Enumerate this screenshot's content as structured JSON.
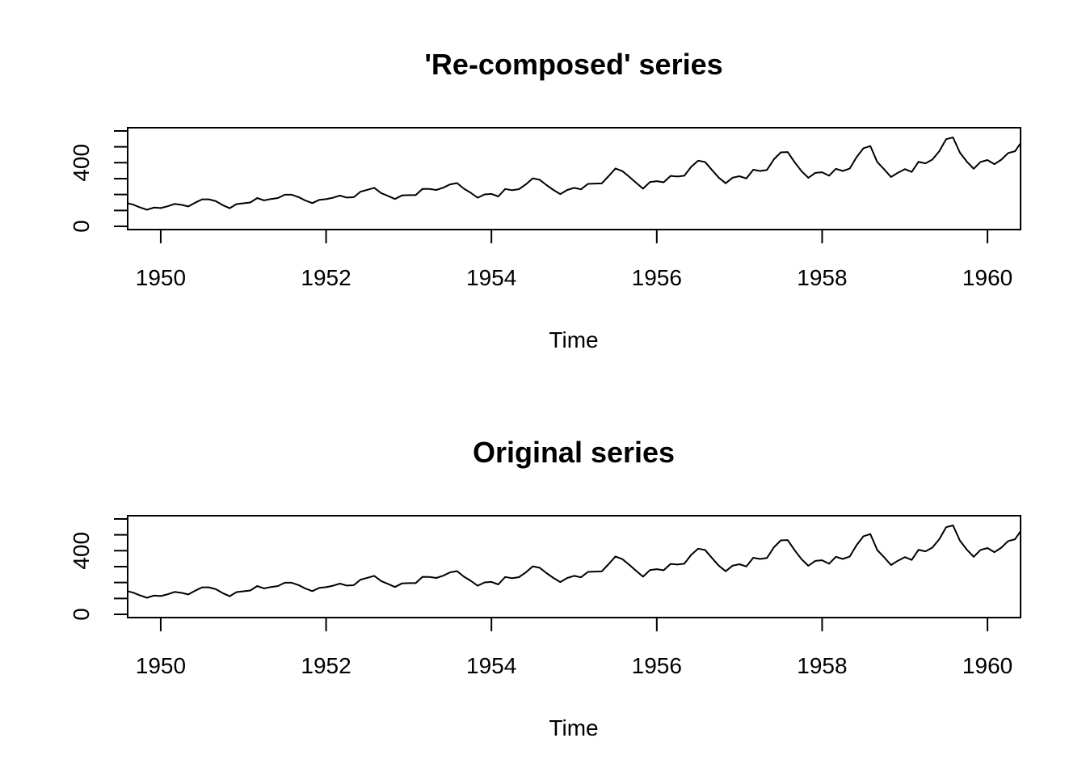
{
  "chart_data": [
    {
      "type": "line",
      "title": "'Re-composed' series",
      "xlabel": "Time",
      "ylabel": "",
      "x_start": 1949.0,
      "x_step": 0.0833333,
      "xlim": [
        1949.6,
        1960.4
      ],
      "ylim": [
        0,
        610
      ],
      "x_ticks": [
        1950,
        1952,
        1954,
        1956,
        1958,
        1960
      ],
      "x_tick_labels": [
        "1950",
        "1952",
        "1954",
        "1956",
        "1958",
        "1960"
      ],
      "y_ticks": [
        0,
        100,
        200,
        300,
        400,
        500,
        600
      ],
      "y_tick_labels": [
        "0",
        "",
        "",
        "",
        "400",
        "",
        ""
      ],
      "values": [
        112,
        118,
        132,
        129,
        121,
        135,
        148,
        148,
        136,
        119,
        104,
        118,
        115,
        126,
        141,
        135,
        125,
        149,
        170,
        170,
        158,
        133,
        114,
        140,
        145,
        150,
        178,
        163,
        172,
        178,
        199,
        199,
        184,
        162,
        146,
        166,
        171,
        180,
        193,
        181,
        183,
        218,
        230,
        242,
        209,
        191,
        172,
        194,
        196,
        196,
        236,
        235,
        229,
        243,
        264,
        272,
        237,
        211,
        180,
        201,
        204,
        188,
        235,
        227,
        234,
        264,
        302,
        293,
        259,
        229,
        203,
        229,
        242,
        233,
        267,
        269,
        270,
        315,
        364,
        347,
        312,
        274,
        237,
        278,
        284,
        277,
        317,
        313,
        318,
        374,
        413,
        405,
        355,
        306,
        271,
        306,
        315,
        301,
        356,
        348,
        355,
        422,
        465,
        467,
        404,
        347,
        305,
        336,
        340,
        318,
        362,
        348,
        363,
        435,
        491,
        505,
        404,
        359,
        310,
        337,
        360,
        342,
        406,
        396,
        420,
        472,
        548,
        559,
        463,
        407,
        362,
        405,
        417,
        391,
        419,
        461,
        472,
        535,
        622,
        606,
        508,
        461,
        390,
        432
      ]
    },
    {
      "type": "line",
      "title": "Original series",
      "xlabel": "Time",
      "ylabel": "",
      "x_start": 1949.0,
      "x_step": 0.0833333,
      "xlim": [
        1949.6,
        1960.4
      ],
      "ylim": [
        0,
        610
      ],
      "x_ticks": [
        1950,
        1952,
        1954,
        1956,
        1958,
        1960
      ],
      "x_tick_labels": [
        "1950",
        "1952",
        "1954",
        "1956",
        "1958",
        "1960"
      ],
      "y_ticks": [
        0,
        100,
        200,
        300,
        400,
        500,
        600
      ],
      "y_tick_labels": [
        "0",
        "",
        "",
        "",
        "400",
        "",
        ""
      ],
      "values": [
        112,
        118,
        132,
        129,
        121,
        135,
        148,
        148,
        136,
        119,
        104,
        118,
        115,
        126,
        141,
        135,
        125,
        149,
        170,
        170,
        158,
        133,
        114,
        140,
        145,
        150,
        178,
        163,
        172,
        178,
        199,
        199,
        184,
        162,
        146,
        166,
        171,
        180,
        193,
        181,
        183,
        218,
        230,
        242,
        209,
        191,
        172,
        194,
        196,
        196,
        236,
        235,
        229,
        243,
        264,
        272,
        237,
        211,
        180,
        201,
        204,
        188,
        235,
        227,
        234,
        264,
        302,
        293,
        259,
        229,
        203,
        229,
        242,
        233,
        267,
        269,
        270,
        315,
        364,
        347,
        312,
        274,
        237,
        278,
        284,
        277,
        317,
        313,
        318,
        374,
        413,
        405,
        355,
        306,
        271,
        306,
        315,
        301,
        356,
        348,
        355,
        422,
        465,
        467,
        404,
        347,
        305,
        336,
        340,
        318,
        362,
        348,
        363,
        435,
        491,
        505,
        404,
        359,
        310,
        337,
        360,
        342,
        406,
        396,
        420,
        472,
        548,
        559,
        463,
        407,
        362,
        405,
        417,
        391,
        419,
        461,
        472,
        535,
        622,
        606,
        508,
        461,
        390,
        432
      ]
    }
  ]
}
